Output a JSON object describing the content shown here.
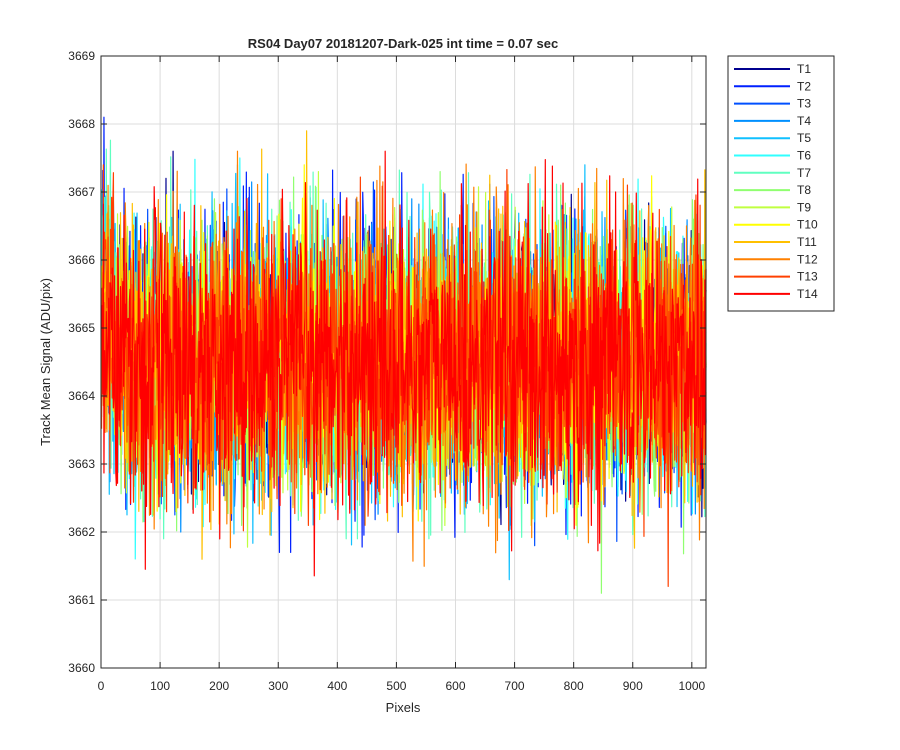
{
  "chart_data": {
    "type": "line",
    "title": "RS04 Day07 20181207-Dark-025 int time = 0.07 sec",
    "xlabel": "Pixels",
    "ylabel": "Track Mean Signal (ADU/pix)",
    "xlim": [
      0,
      1024
    ],
    "ylim": [
      3660,
      3669
    ],
    "x_ticks": [
      "0",
      "100",
      "200",
      "300",
      "400",
      "500",
      "600",
      "700",
      "800",
      "900",
      "1000"
    ],
    "y_ticks": [
      "3660",
      "3661",
      "3662",
      "3663",
      "3664",
      "3665",
      "3666",
      "3667",
      "3668",
      "3669"
    ],
    "grid": true,
    "legend_position": "outside-top-right",
    "x": {
      "start": 1,
      "end": 1024,
      "step": 1
    },
    "series": [
      {
        "name": "T1",
        "color": "#00008f",
        "mean": 3664.5,
        "min": 3662.1,
        "max": 3667.6
      },
      {
        "name": "T2",
        "color": "#0020ff",
        "mean": 3664.5,
        "min": 3661.7,
        "max": 3668.1
      },
      {
        "name": "T3",
        "color": "#0050ff",
        "mean": 3664.5,
        "min": 3661.8,
        "max": 3667.6
      },
      {
        "name": "T4",
        "color": "#0090ff",
        "mean": 3664.5,
        "min": 3662.0,
        "max": 3667.4
      },
      {
        "name": "T5",
        "color": "#10c0ff",
        "mean": 3664.5,
        "min": 3661.3,
        "max": 3667.4
      },
      {
        "name": "T6",
        "color": "#30ffff",
        "mean": 3664.5,
        "min": 3661.5,
        "max": 3667.5
      },
      {
        "name": "T7",
        "color": "#60ffc0",
        "mean": 3664.5,
        "min": 3661.9,
        "max": 3668.3
      },
      {
        "name": "T8",
        "color": "#90ff70",
        "mean": 3664.5,
        "min": 3661.1,
        "max": 3667.3
      },
      {
        "name": "T9",
        "color": "#c0ff40",
        "mean": 3664.5,
        "min": 3661.5,
        "max": 3667.3
      },
      {
        "name": "T10",
        "color": "#ffff00",
        "mean": 3664.5,
        "min": 3662.1,
        "max": 3667.4
      },
      {
        "name": "T11",
        "color": "#ffc000",
        "mean": 3664.5,
        "min": 3661.6,
        "max": 3667.9
      },
      {
        "name": "T12",
        "color": "#ff8000",
        "mean": 3664.5,
        "min": 3661.0,
        "max": 3667.6
      },
      {
        "name": "T13",
        "color": "#ff4000",
        "mean": 3664.5,
        "min": 3661.2,
        "max": 3667.4
      },
      {
        "name": "T14",
        "color": "#ff0000",
        "mean": 3664.5,
        "min": 3660.9,
        "max": 3667.6
      }
    ]
  }
}
